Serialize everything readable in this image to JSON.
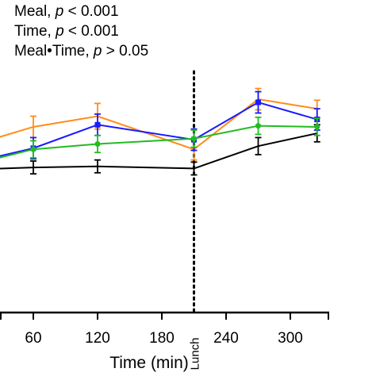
{
  "stats": [
    {
      "pre": "Meal, ",
      "p": "p",
      "post": " < 0.001"
    },
    {
      "pre": "Time, ",
      "p": "p",
      "post": " < 0.001"
    },
    {
      "pre": "Meal•Time, ",
      "p": "p",
      "post": " > 0.05"
    }
  ],
  "chart_data": {
    "type": "line",
    "xlabel": "Time (min)",
    "ylabel": "",
    "x_ticks": [
      60,
      120,
      180,
      240,
      300
    ],
    "xlim": [
      0,
      320
    ],
    "ylim": [
      0,
      1
    ],
    "grid": false,
    "marker_line": {
      "x": 210,
      "label": "Lunch",
      "style": "dotted"
    },
    "series": [
      {
        "color": "#000000",
        "marker": "none",
        "x": [
          0,
          60,
          120,
          210,
          270,
          325
        ],
        "y": [
          0.67,
          0.68,
          0.685,
          0.675,
          0.78,
          0.84
        ],
        "err": [
          0.02,
          0.03,
          0.03,
          0.03,
          0.04,
          0.04
        ]
      },
      {
        "color": "#ff8c1a",
        "marker": "none",
        "x": [
          0,
          60,
          120,
          210,
          270,
          325
        ],
        "y": [
          0.78,
          0.87,
          0.92,
          0.765,
          1.0,
          0.955
        ],
        "err": [
          0.03,
          0.05,
          0.06,
          0.05,
          0.05,
          0.04
        ]
      },
      {
        "color": "#1a1aff",
        "marker": "square",
        "x": [
          0,
          60,
          120,
          210,
          270,
          325
        ],
        "y": [
          0.7,
          0.77,
          0.88,
          0.81,
          0.985,
          0.905
        ],
        "err": [
          0.03,
          0.05,
          0.05,
          0.05,
          0.05,
          0.05
        ]
      },
      {
        "color": "#22bb22",
        "marker": "circle",
        "x": [
          0,
          60,
          120,
          210,
          270,
          325
        ],
        "y": [
          0.69,
          0.765,
          0.79,
          0.815,
          0.875,
          0.87
        ],
        "err": [
          0.03,
          0.04,
          0.04,
          0.04,
          0.04,
          0.04
        ]
      }
    ]
  }
}
